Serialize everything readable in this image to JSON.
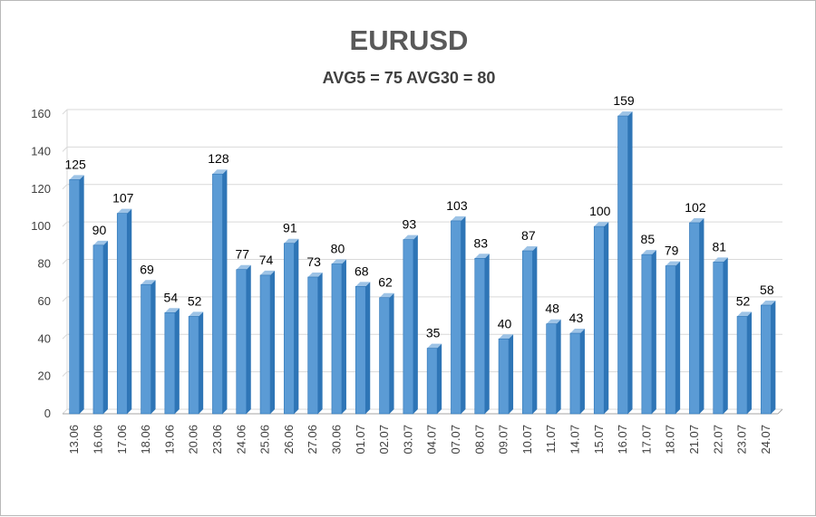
{
  "chart_data": {
    "type": "bar",
    "title": "EURUSD",
    "subtitle": "AVG5 = 75 AVG30 = 80",
    "categories": [
      "13.06",
      "16.06",
      "17.06",
      "18.06",
      "19.06",
      "20.06",
      "23.06",
      "24.06",
      "25.06",
      "26.06",
      "27.06",
      "30.06",
      "01.07",
      "02.07",
      "03.07",
      "04.07",
      "07.07",
      "08.07",
      "09.07",
      "10.07",
      "11.07",
      "14.07",
      "15.07",
      "16.07",
      "17.07",
      "18.07",
      "21.07",
      "22.07",
      "23.07",
      "24.07"
    ],
    "values": [
      125,
      90,
      107,
      69,
      54,
      52,
      128,
      77,
      74,
      91,
      73,
      80,
      68,
      62,
      93,
      35,
      103,
      83,
      40,
      87,
      48,
      43,
      100,
      159,
      85,
      79,
      102,
      81,
      52,
      58
    ],
    "xlabel": "",
    "ylabel": "",
    "ylim": [
      0,
      160
    ],
    "yticks": [
      0,
      20,
      40,
      60,
      80,
      100,
      120,
      140,
      160
    ],
    "grid": true,
    "legend": "none",
    "colors": {
      "bar_front": "#5b9bd5",
      "bar_side": "#2e75b6",
      "bar_top": "#9dc3e6",
      "grid": "#d9d9d9",
      "axis": "#a6a6a6"
    }
  }
}
